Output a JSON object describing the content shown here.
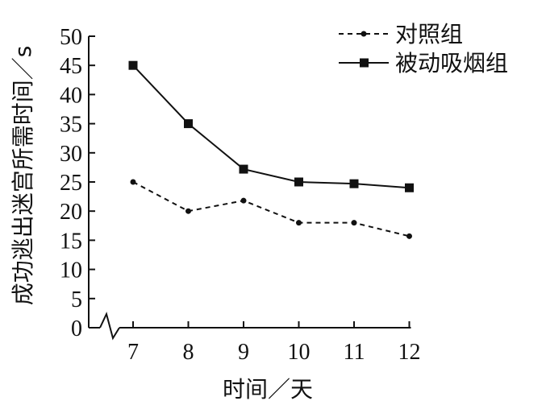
{
  "chart_data": {
    "type": "line",
    "x": [
      7,
      8,
      9,
      10,
      11,
      12
    ],
    "xlabel": "时间／天",
    "ylabel": "成功逃出迷宫所需时间／s",
    "ylim": [
      0,
      50
    ],
    "yticks": [
      0,
      5,
      10,
      15,
      20,
      25,
      30,
      35,
      40,
      45,
      50
    ],
    "xaxis_break": true,
    "grid": false,
    "legend_position": "top-right",
    "series": [
      {
        "name": "对照组",
        "style": "dashed",
        "marker": "circle",
        "color": "#111111",
        "values": [
          25,
          20,
          21.8,
          18,
          18,
          15.7
        ]
      },
      {
        "name": "被动吸烟组",
        "style": "solid",
        "marker": "square",
        "color": "#111111",
        "values": [
          45,
          35,
          27.2,
          25,
          24.7,
          24
        ]
      }
    ]
  }
}
